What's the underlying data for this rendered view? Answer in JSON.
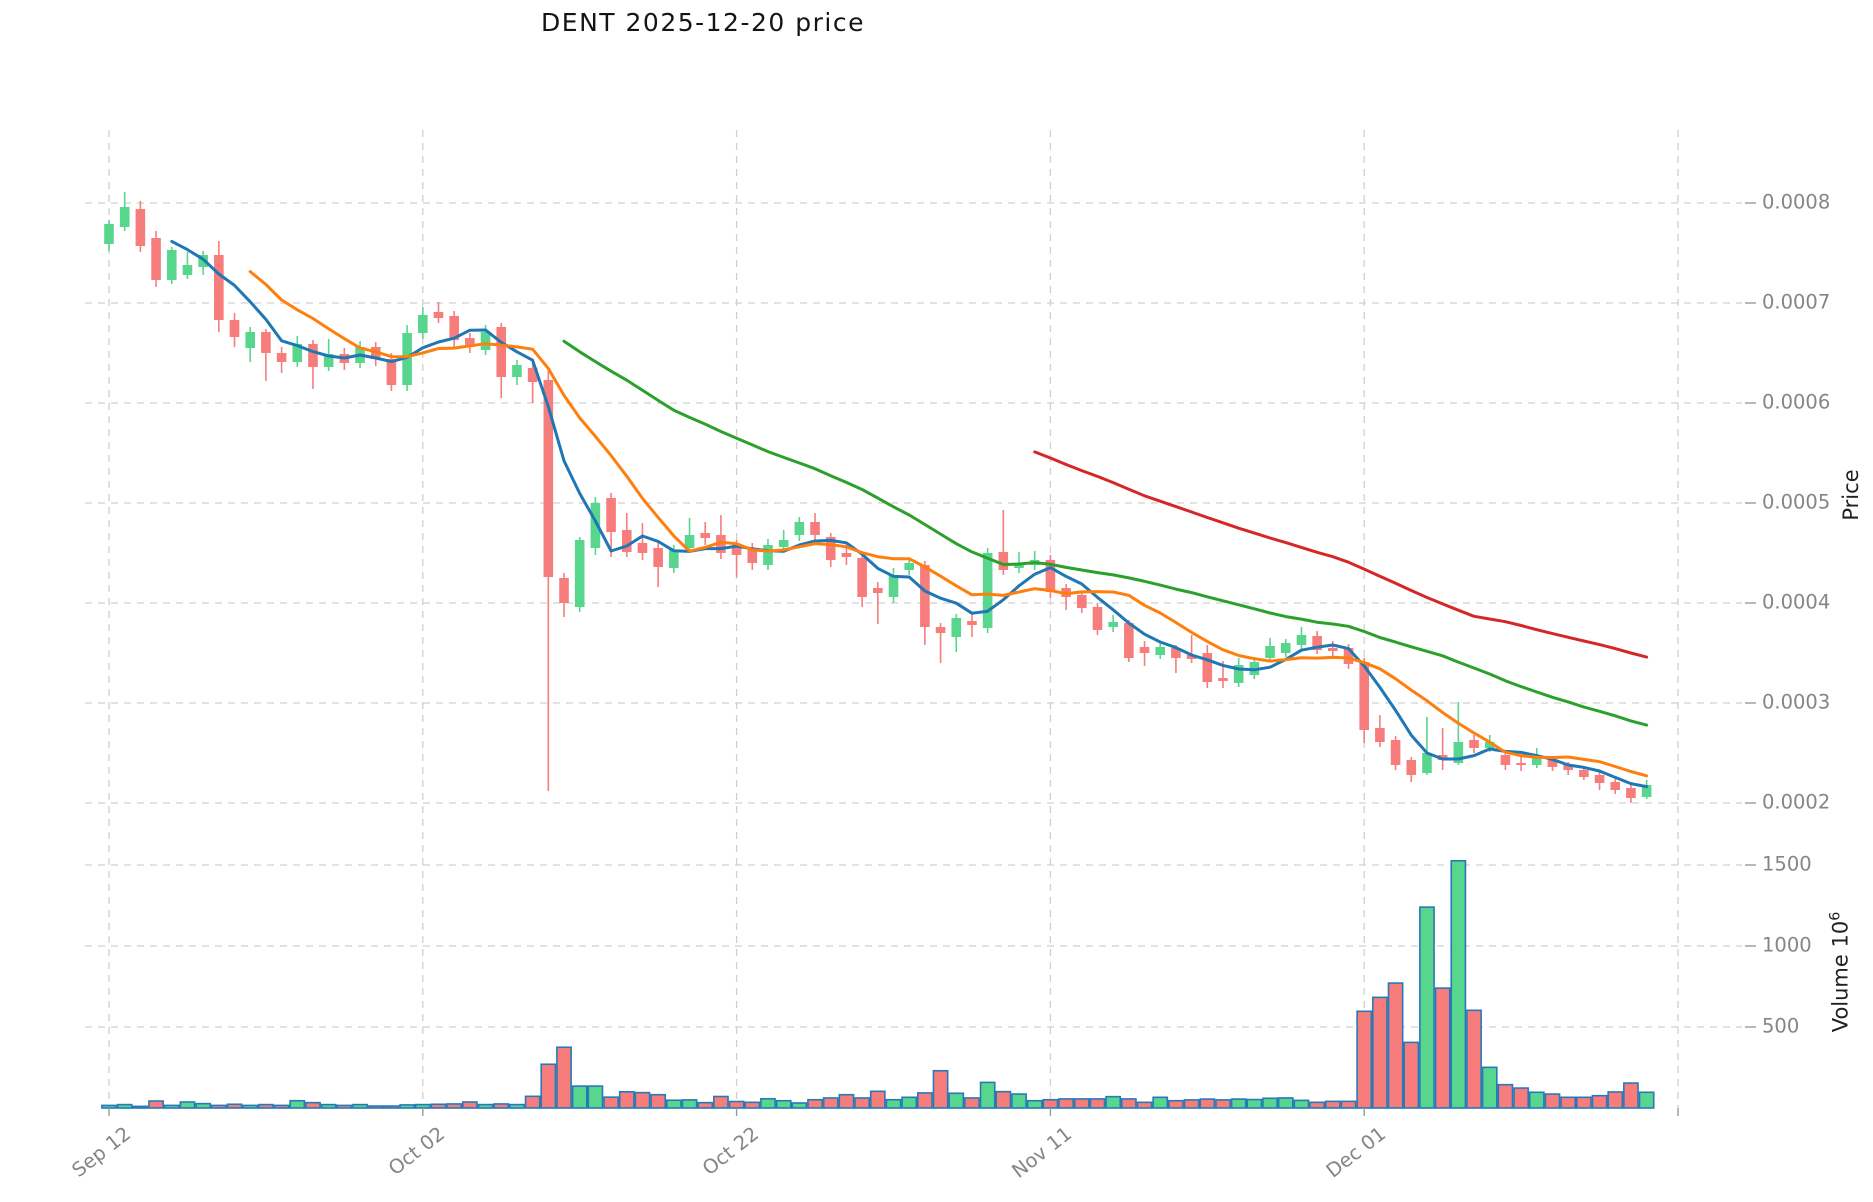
{
  "title": "DENT  2025-12-20  price",
  "axes": {
    "price_axis_label": "Price",
    "volume_axis_label_base": "Volume  10",
    "volume_axis_label_exp": "6",
    "price_tick_labels": [
      "0.0002",
      "0.0003",
      "0.0004",
      "0.0005",
      "0.0006",
      "0.0007",
      "0.0008"
    ],
    "volume_tick_labels": [
      "500",
      "1000",
      "1500"
    ],
    "x_tick_labels": [
      "Sep 12",
      "Oct 02",
      "Oct 22",
      "Nov 11",
      "Dec 01"
    ]
  },
  "colors": {
    "up": "#58d68d",
    "down": "#f77c7c",
    "volume_edge": "#2779b8",
    "ma5": "#1f77b4",
    "ma10": "#ff7f0e",
    "ma30": "#2ca02c",
    "ma60": "#d62728",
    "grid": "#d0d0d0",
    "tick_text": "#858585"
  },
  "chart_data": {
    "type": "candlestick",
    "symbol": "DENT",
    "title": "DENT  2025-12-20  price",
    "ylabel": "Price",
    "ylabel_volume": "Volume 10^6",
    "volume_unit": "1e6",
    "legend_position": "none",
    "grid": "dashed",
    "price_ticks": [
      0.0002,
      0.0003,
      0.0004,
      0.0005,
      0.0006,
      0.0007,
      0.0008
    ],
    "volume_ticks": [
      500,
      1000,
      1500
    ],
    "x_gridline_days": [
      0,
      20,
      40,
      60,
      80,
      100
    ],
    "x_gridline_labels": [
      "Sep 12",
      "Oct 02",
      "Oct 22",
      "Nov 11",
      "Dec 01",
      ""
    ],
    "ylim_price": [
      0.000183,
      0.000873
    ],
    "ylim_volume": [
      0,
      1640
    ],
    "moving_averages": [
      {
        "window": 5,
        "color": "#1f77b4"
      },
      {
        "window": 10,
        "color": "#ff7f0e"
      },
      {
        "window": 30,
        "color": "#2ca02c"
      },
      {
        "window": 60,
        "color": "#d62728"
      }
    ],
    "ohlcv_columns": [
      "date",
      "open",
      "high",
      "low",
      "close",
      "volume_millions"
    ],
    "ohlcv": [
      [
        "2025-09-12",
        0.000759,
        0.000783,
        0.000752,
        0.000779,
        16
      ],
      [
        "2025-09-13",
        0.000776,
        0.000811,
        0.000772,
        0.000796,
        21
      ],
      [
        "2025-09-14",
        0.000794,
        0.000802,
        0.000751,
        0.000757,
        10
      ],
      [
        "2025-09-15",
        0.000765,
        0.000772,
        0.000716,
        0.000723,
        43
      ],
      [
        "2025-09-16",
        0.000723,
        0.000756,
        0.000719,
        0.000753,
        16
      ],
      [
        "2025-09-17",
        0.000728,
        0.000751,
        0.000724,
        0.000738,
        37
      ],
      [
        "2025-09-18",
        0.000736,
        0.000752,
        0.000728,
        0.000748,
        27
      ],
      [
        "2025-09-19",
        0.000748,
        0.000762,
        0.000671,
        0.000683,
        16
      ],
      [
        "2025-09-20",
        0.000683,
        0.00069,
        0.000656,
        0.000666,
        23
      ],
      [
        "2025-09-21",
        0.000655,
        0.000676,
        0.000641,
        0.000671,
        16
      ],
      [
        "2025-09-22",
        0.000671,
        0.000674,
        0.000622,
        0.00065,
        21
      ],
      [
        "2025-09-23",
        0.00065,
        0.000656,
        0.00063,
        0.000641,
        16
      ],
      [
        "2025-09-24",
        0.000641,
        0.000667,
        0.000636,
        0.000659,
        45
      ],
      [
        "2025-09-25",
        0.000659,
        0.000663,
        0.000614,
        0.000636,
        33
      ],
      [
        "2025-09-26",
        0.000636,
        0.000664,
        0.000632,
        0.000649,
        21
      ],
      [
        "2025-09-27",
        0.000649,
        0.000655,
        0.000633,
        0.00064,
        16
      ],
      [
        "2025-09-28",
        0.00064,
        0.000662,
        0.000635,
        0.000656,
        21
      ],
      [
        "2025-09-29",
        0.000656,
        0.000661,
        0.000637,
        0.000644,
        12
      ],
      [
        "2025-09-30",
        0.000644,
        0.00065,
        0.000612,
        0.000618,
        12
      ],
      [
        "2025-10-01",
        0.000618,
        0.000678,
        0.000612,
        0.00067,
        19
      ],
      [
        "2025-10-02",
        0.00067,
        0.000696,
        0.000664,
        0.000688,
        21
      ],
      [
        "2025-10-03",
        0.000691,
        0.000701,
        0.00068,
        0.000685,
        23
      ],
      [
        "2025-10-04",
        0.000687,
        0.000692,
        0.000655,
        0.000663,
        25
      ],
      [
        "2025-10-05",
        0.000665,
        0.00067,
        0.00065,
        0.000658,
        37
      ],
      [
        "2025-10-06",
        0.000653,
        0.000678,
        0.000648,
        0.000671,
        21
      ],
      [
        "2025-10-07",
        0.000676,
        0.00068,
        0.000605,
        0.000626,
        25
      ],
      [
        "2025-10-08",
        0.000626,
        0.000643,
        0.000618,
        0.000638,
        21
      ],
      [
        "2025-10-09",
        0.000635,
        0.000641,
        0.0006,
        0.000621,
        72
      ],
      [
        "2025-10-10",
        0.000623,
        0.000635,
        0.000212,
        0.000426,
        270
      ],
      [
        "2025-10-11",
        0.000425,
        0.00043,
        0.000386,
        0.0004,
        375
      ],
      [
        "2025-10-12",
        0.000396,
        0.000466,
        0.000391,
        0.000463,
        135
      ],
      [
        "2025-10-13",
        0.000455,
        0.000506,
        0.000448,
        0.0005,
        135
      ],
      [
        "2025-10-14",
        0.000505,
        0.00051,
        0.000446,
        0.000471,
        67
      ],
      [
        "2025-10-15",
        0.000473,
        0.00049,
        0.000446,
        0.000451,
        100
      ],
      [
        "2025-10-16",
        0.00046,
        0.00048,
        0.000443,
        0.00045,
        95
      ],
      [
        "2025-10-17",
        0.000455,
        0.000461,
        0.000416,
        0.000436,
        82
      ],
      [
        "2025-10-18",
        0.000435,
        0.000458,
        0.00043,
        0.000453,
        48
      ],
      [
        "2025-10-19",
        0.000455,
        0.000485,
        0.00045,
        0.000468,
        50
      ],
      [
        "2025-10-20",
        0.00047,
        0.000481,
        0.000458,
        0.000465,
        33
      ],
      [
        "2025-10-21",
        0.000468,
        0.000488,
        0.000444,
        0.00045,
        71
      ],
      [
        "2025-10-22",
        0.000458,
        0.000463,
        0.000426,
        0.000448,
        40
      ],
      [
        "2025-10-23",
        0.000455,
        0.00046,
        0.000433,
        0.00044,
        35
      ],
      [
        "2025-10-24",
        0.000438,
        0.000464,
        0.000433,
        0.000458,
        57
      ],
      [
        "2025-10-25",
        0.000456,
        0.000473,
        0.00045,
        0.000463,
        45
      ],
      [
        "2025-10-26",
        0.000468,
        0.000486,
        0.000462,
        0.000481,
        31
      ],
      [
        "2025-10-27",
        0.000481,
        0.00049,
        0.000461,
        0.000468,
        51
      ],
      [
        "2025-10-28",
        0.000466,
        0.00047,
        0.000436,
        0.000443,
        62
      ],
      [
        "2025-10-29",
        0.00045,
        0.00046,
        0.000438,
        0.000446,
        82
      ],
      [
        "2025-10-30",
        0.000445,
        0.00045,
        0.000396,
        0.000406,
        62
      ],
      [
        "2025-10-31",
        0.000415,
        0.000421,
        0.000379,
        0.00041,
        103
      ],
      [
        "2025-11-01",
        0.000406,
        0.000435,
        0.0004,
        0.000428,
        51
      ],
      [
        "2025-11-02",
        0.000433,
        0.000443,
        0.000428,
        0.00044,
        66
      ],
      [
        "2025-11-03",
        0.000438,
        0.000442,
        0.000358,
        0.000376,
        93
      ],
      [
        "2025-11-04",
        0.000376,
        0.00038,
        0.00034,
        0.00037,
        230
      ],
      [
        "2025-11-05",
        0.000366,
        0.000389,
        0.000351,
        0.000385,
        91
      ],
      [
        "2025-11-06",
        0.000382,
        0.000389,
        0.000366,
        0.000378,
        62
      ],
      [
        "2025-11-07",
        0.000375,
        0.000455,
        0.00037,
        0.00045,
        158
      ],
      [
        "2025-11-08",
        0.000451,
        0.000493,
        0.000428,
        0.000433,
        101
      ],
      [
        "2025-11-09",
        0.000435,
        0.000451,
        0.00043,
        0.00044,
        86
      ],
      [
        "2025-11-10",
        0.000438,
        0.000452,
        0.000433,
        0.000443,
        45
      ],
      [
        "2025-11-11",
        0.000443,
        0.000448,
        0.000405,
        0.000411,
        51
      ],
      [
        "2025-11-12",
        0.000415,
        0.000419,
        0.000393,
        0.000406,
        56
      ],
      [
        "2025-11-13",
        0.000408,
        0.000412,
        0.00039,
        0.000395,
        56
      ],
      [
        "2025-11-14",
        0.000396,
        0.0004,
        0.000368,
        0.000373,
        56
      ],
      [
        "2025-11-15",
        0.000376,
        0.000388,
        0.000371,
        0.000381,
        70
      ],
      [
        "2025-11-16",
        0.00038,
        0.000383,
        0.000341,
        0.000345,
        56
      ],
      [
        "2025-11-17",
        0.000356,
        0.000362,
        0.000337,
        0.00035,
        35
      ],
      [
        "2025-11-18",
        0.000348,
        0.00036,
        0.000344,
        0.000356,
        66
      ],
      [
        "2025-11-19",
        0.000355,
        0.000358,
        0.00033,
        0.000345,
        45
      ],
      [
        "2025-11-20",
        0.000348,
        0.000368,
        0.00034,
        0.000344,
        50
      ],
      [
        "2025-11-21",
        0.00035,
        0.000358,
        0.000315,
        0.000321,
        55
      ],
      [
        "2025-11-22",
        0.000325,
        0.000342,
        0.000315,
        0.000322,
        50
      ],
      [
        "2025-11-23",
        0.00032,
        0.000345,
        0.000316,
        0.000338,
        55
      ],
      [
        "2025-11-24",
        0.000328,
        0.000346,
        0.000324,
        0.000341,
        52
      ],
      [
        "2025-11-25",
        0.000345,
        0.000365,
        0.000341,
        0.000357,
        60
      ],
      [
        "2025-11-26",
        0.00035,
        0.000364,
        0.000346,
        0.00036,
        62
      ],
      [
        "2025-11-27",
        0.000358,
        0.000376,
        0.000354,
        0.000368,
        47
      ],
      [
        "2025-11-28",
        0.000367,
        0.000372,
        0.000349,
        0.000353,
        35
      ],
      [
        "2025-11-29",
        0.000355,
        0.000362,
        0.000347,
        0.000352,
        41
      ],
      [
        "2025-11-30",
        0.000355,
        0.000359,
        0.000334,
        0.000339,
        41
      ],
      [
        "2025-12-01",
        0.000341,
        0.000345,
        0.00026,
        0.000273,
        597
      ],
      [
        "2025-12-02",
        0.000275,
        0.000288,
        0.000256,
        0.000261,
        683
      ],
      [
        "2025-12-03",
        0.000263,
        0.000267,
        0.000233,
        0.000238,
        771
      ],
      [
        "2025-12-04",
        0.000243,
        0.000246,
        0.000221,
        0.000228,
        405
      ],
      [
        "2025-12-05",
        0.00023,
        0.000286,
        0.000228,
        0.00025,
        1240
      ],
      [
        "2025-12-06",
        0.000248,
        0.000275,
        0.000233,
        0.000243,
        740
      ],
      [
        "2025-12-07",
        0.00024,
        0.000301,
        0.000238,
        0.000261,
        1526
      ],
      [
        "2025-12-08",
        0.000263,
        0.000268,
        0.00025,
        0.000255,
        603
      ],
      [
        "2025-12-09",
        0.000255,
        0.000268,
        0.000251,
        0.000261,
        251
      ],
      [
        "2025-12-10",
        0.000248,
        0.000252,
        0.000233,
        0.000238,
        144
      ],
      [
        "2025-12-11",
        0.00024,
        0.000247,
        0.000232,
        0.000238,
        123
      ],
      [
        "2025-12-12",
        0.000238,
        0.000255,
        0.000235,
        0.000245,
        97
      ],
      [
        "2025-12-13",
        0.000243,
        0.000247,
        0.000232,
        0.000236,
        86
      ],
      [
        "2025-12-14",
        0.000238,
        0.000241,
        0.000228,
        0.000233,
        66
      ],
      [
        "2025-12-15",
        0.000233,
        0.000236,
        0.000223,
        0.000226,
        66
      ],
      [
        "2025-12-16",
        0.000228,
        0.000231,
        0.000213,
        0.00022,
        76
      ],
      [
        "2025-12-17",
        0.000221,
        0.000224,
        0.000209,
        0.000213,
        99
      ],
      [
        "2025-12-18",
        0.000215,
        0.000218,
        0.0002,
        0.000205,
        154
      ],
      [
        "2025-12-19",
        0.000206,
        0.000223,
        0.000204,
        0.000218,
        97
      ]
    ]
  }
}
